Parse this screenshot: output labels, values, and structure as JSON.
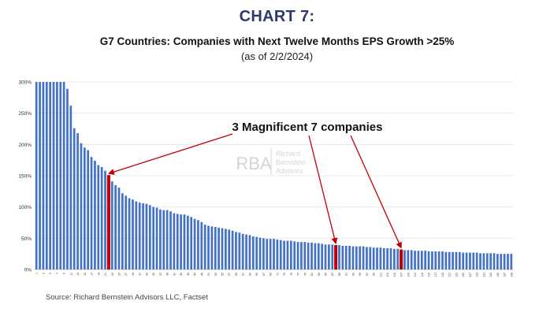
{
  "header": {
    "title": "CHART 7:",
    "subtitle": "G7 Countries: Companies with Next Twelve Months EPS Growth >25%",
    "asof": "(as of 2/2/2024)"
  },
  "annotation": {
    "text": "3 Magnificent 7 companies",
    "color": "#c00000"
  },
  "watermark": {
    "mark": "RBA",
    "name": [
      "Richard",
      "Bernstein",
      "Advisors"
    ]
  },
  "source": "Source: Richard Bernstein Advisors LLC, Factset",
  "chart_data": {
    "type": "bar",
    "ylim": [
      0,
      300
    ],
    "yticks": [
      0,
      50,
      100,
      150,
      200,
      250,
      300
    ],
    "ytick_suffix": "%",
    "grid": true,
    "bar_color": "#4472c4",
    "highlight_color": "#c00000",
    "highlight_indices": [
      21,
      87,
      106
    ],
    "values": [
      300,
      300,
      300,
      300,
      300,
      300,
      300,
      300,
      300,
      289,
      262,
      226,
      218,
      202,
      195,
      191,
      180,
      174,
      167,
      164,
      158,
      151,
      141,
      135,
      131,
      122,
      118,
      114,
      112,
      109,
      107,
      106,
      105,
      103,
      100,
      99,
      96,
      95,
      95,
      93,
      90,
      89,
      88,
      88,
      86,
      84,
      81,
      79,
      76,
      72,
      70,
      69,
      68,
      67,
      66,
      65,
      64,
      62,
      60,
      59,
      57,
      56,
      55,
      53,
      52,
      51,
      50,
      49,
      49,
      49,
      48,
      47,
      46,
      46,
      46,
      45,
      44,
      44,
      44,
      43,
      43,
      42,
      42,
      41,
      40,
      40,
      40,
      39,
      39,
      38,
      38,
      38,
      37,
      37,
      37,
      37,
      36,
      36,
      35,
      35,
      35,
      34,
      34,
      34,
      33,
      33,
      32,
      31,
      31,
      31,
      30,
      30,
      30,
      30,
      29,
      29,
      29,
      29,
      29,
      28,
      28,
      28,
      28,
      28,
      27,
      27,
      27,
      27,
      27,
      26,
      26,
      26,
      26,
      26,
      25,
      25,
      25,
      25,
      25
    ],
    "xtick_labels": [
      "1",
      "3",
      "5",
      "7",
      "9",
      "11",
      "13",
      "15",
      "17",
      "19",
      "21",
      "23",
      "25",
      "27",
      "29",
      "31",
      "33",
      "35",
      "37",
      "39",
      "41",
      "43",
      "45",
      "47",
      "49",
      "51",
      "53",
      "55",
      "57",
      "59",
      "61",
      "63",
      "65",
      "67",
      "69",
      "71",
      "73",
      "75",
      "77",
      "79",
      "81",
      "83",
      "85",
      "87",
      "89",
      "91",
      "93",
      "95",
      "97",
      "99",
      "101",
      "103",
      "105",
      "107",
      "109",
      "111",
      "113",
      "115",
      "117",
      "119",
      "121",
      "123",
      "125",
      "127",
      "129",
      "131",
      "133",
      "135",
      "137",
      "139"
    ]
  }
}
